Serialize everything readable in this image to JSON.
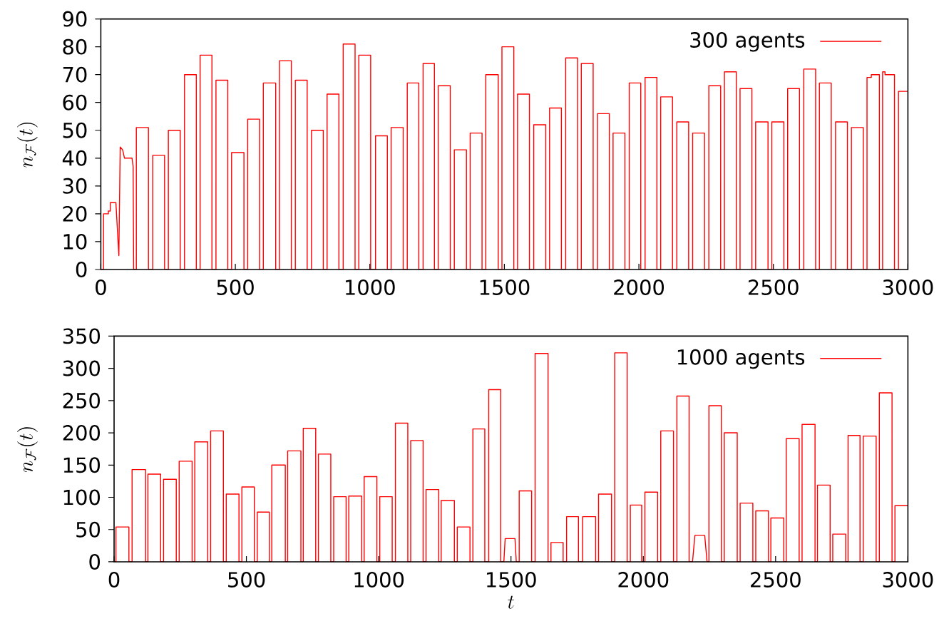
{
  "chart_data": [
    {
      "type": "line",
      "ylabel": "n_{\\mathcal{F}}(t)",
      "xlim": [
        0,
        3000
      ],
      "ylim": [
        0,
        90
      ],
      "xticks": [
        0,
        500,
        1000,
        1500,
        2000,
        2500,
        3000
      ],
      "yticks": [
        0,
        10,
        20,
        30,
        40,
        50,
        60,
        70,
        80,
        90
      ],
      "legend": "top right",
      "x": [
        0,
        10,
        10,
        28,
        28,
        35,
        35,
        56,
        67,
        72,
        81,
        88,
        116,
        120,
        122,
        132,
        132,
        177,
        177,
        193,
        193,
        237,
        237,
        251,
        251,
        295,
        295,
        311,
        311,
        355,
        355,
        369,
        369,
        413,
        413,
        428,
        428,
        472,
        472,
        486,
        486,
        532,
        532,
        546,
        546,
        590,
        590,
        604,
        604,
        650,
        650,
        664,
        664,
        708,
        708,
        723,
        723,
        767,
        767,
        783,
        783,
        827,
        827,
        841,
        841,
        885,
        885,
        901,
        901,
        945,
        945,
        959,
        959,
        1003,
        1003,
        1021,
        1021,
        1065,
        1065,
        1079,
        1079,
        1124,
        1124,
        1139,
        1139,
        1182,
        1182,
        1198,
        1198,
        1240,
        1240,
        1254,
        1254,
        1299,
        1299,
        1314,
        1314,
        1359,
        1359,
        1373,
        1373,
        1417,
        1417,
        1431,
        1431,
        1477,
        1477,
        1491,
        1491,
        1535,
        1535,
        1549,
        1549,
        1593,
        1593,
        1609,
        1609,
        1654,
        1654,
        1668,
        1668,
        1712,
        1712,
        1728,
        1728,
        1772,
        1772,
        1786,
        1786,
        1830,
        1830,
        1846,
        1846,
        1890,
        1890,
        1904,
        1904,
        1948,
        1948,
        1964,
        1964,
        2007,
        2007,
        2023,
        2023,
        2067,
        2067,
        2081,
        2081,
        2125,
        2125,
        2141,
        2141,
        2185,
        2185,
        2200,
        2200,
        2244,
        2244,
        2260,
        2260,
        2304,
        2304,
        2318,
        2318,
        2362,
        2362,
        2376,
        2376,
        2420,
        2420,
        2434,
        2434,
        2480,
        2480,
        2494,
        2494,
        2539,
        2539,
        2553,
        2553,
        2597,
        2597,
        2613,
        2613,
        2657,
        2657,
        2671,
        2671,
        2715,
        2715,
        2731,
        2731,
        2775,
        2775,
        2790,
        2790,
        2834,
        2834,
        2848,
        2848,
        2864,
        2864,
        2894,
        2894,
        2906,
        2906,
        2915,
        2915,
        2950,
        2950,
        2965,
        2965,
        3000
      ],
      "series": [
        {
          "name": "300 agents",
          "color": "#ff0000",
          "values": [
            0,
            0,
            20,
            20,
            21,
            21,
            24,
            24,
            5,
            44,
            43,
            40,
            40,
            37,
            0,
            0,
            51,
            51,
            0,
            0,
            41,
            41,
            0,
            0,
            50,
            50,
            0,
            0,
            70,
            70,
            0,
            0,
            77,
            77,
            0,
            0,
            68,
            68,
            0,
            0,
            42,
            42,
            0,
            0,
            54,
            54,
            0,
            0,
            67,
            67,
            0,
            0,
            75,
            75,
            0,
            0,
            68,
            68,
            0,
            0,
            50,
            50,
            0,
            0,
            63,
            63,
            0,
            0,
            81,
            81,
            0,
            0,
            77,
            77,
            0,
            0,
            48,
            48,
            0,
            0,
            51,
            51,
            0,
            0,
            67,
            67,
            0,
            0,
            74,
            74,
            0,
            0,
            66,
            66,
            0,
            0,
            43,
            43,
            0,
            0,
            49,
            49,
            0,
            0,
            70,
            70,
            0,
            0,
            80,
            80,
            0,
            0,
            63,
            63,
            0,
            0,
            52,
            52,
            0,
            0,
            58,
            58,
            0,
            0,
            76,
            76,
            0,
            0,
            74,
            74,
            0,
            0,
            56,
            56,
            0,
            0,
            49,
            49,
            0,
            0,
            67,
            67,
            0,
            0,
            69,
            69,
            0,
            0,
            62,
            62,
            0,
            0,
            53,
            53,
            0,
            0,
            49,
            49,
            0,
            0,
            66,
            66,
            0,
            0,
            71,
            71,
            0,
            0,
            65,
            65,
            0,
            0,
            53,
            53,
            0,
            0,
            53,
            53,
            0,
            0,
            65,
            65,
            0,
            0,
            72,
            72,
            0,
            0,
            67,
            67,
            0,
            0,
            53,
            53,
            0,
            0,
            51,
            51,
            0,
            0,
            69,
            69,
            70,
            70,
            0,
            0,
            71,
            71,
            70,
            70,
            0,
            0,
            64,
            64
          ]
        }
      ]
    },
    {
      "type": "line",
      "xlabel": "t",
      "ylabel": "n_{\\mathcal{F}}(t)",
      "xlim": [
        0,
        3000
      ],
      "ylim": [
        0,
        350
      ],
      "xticks": [
        0,
        500,
        1000,
        1500,
        2000,
        2500,
        3000
      ],
      "yticks": [
        0,
        50,
        100,
        150,
        200,
        250,
        300,
        350
      ],
      "legend": "top right",
      "x": [
        0,
        7,
        7,
        56,
        56,
        68,
        68,
        119,
        119,
        128,
        128,
        176,
        176,
        187,
        187,
        235,
        235,
        246,
        246,
        295,
        295,
        305,
        305,
        354,
        354,
        365,
        365,
        413,
        413,
        424,
        424,
        472,
        472,
        483,
        483,
        530,
        530,
        541,
        541,
        587,
        587,
        596,
        596,
        647,
        647,
        656,
        656,
        706,
        706,
        715,
        715,
        762,
        762,
        772,
        772,
        819,
        819,
        830,
        830,
        877,
        877,
        887,
        887,
        936,
        936,
        945,
        945,
        993,
        993,
        1004,
        1004,
        1051,
        1051,
        1063,
        1063,
        1110,
        1110,
        1121,
        1121,
        1168,
        1168,
        1179,
        1179,
        1227,
        1227,
        1236,
        1236,
        1286,
        1286,
        1297,
        1297,
        1345,
        1345,
        1356,
        1356,
        1401,
        1401,
        1416,
        1416,
        1461,
        1461,
        1473,
        1478,
        1515,
        1520,
        1531,
        1531,
        1578,
        1578,
        1591,
        1591,
        1640,
        1640,
        1651,
        1651,
        1697,
        1697,
        1710,
        1710,
        1755,
        1755,
        1771,
        1771,
        1820,
        1820,
        1831,
        1831,
        1880,
        1880,
        1892,
        1892,
        1939,
        1939,
        1951,
        1951,
        1994,
        1994,
        2006,
        2006,
        2054,
        2054,
        2066,
        2066,
        2114,
        2114,
        2127,
        2127,
        2173,
        2173,
        2186,
        2195,
        2232,
        2241,
        2248,
        2248,
        2295,
        2295,
        2306,
        2306,
        2355,
        2355,
        2366,
        2366,
        2414,
        2414,
        2425,
        2425,
        2473,
        2473,
        2482,
        2482,
        2531,
        2531,
        2540,
        2540,
        2589,
        2589,
        2600,
        2600,
        2649,
        2649,
        2658,
        2658,
        2706,
        2706,
        2716,
        2716,
        2765,
        2765,
        2774,
        2774,
        2819,
        2819,
        2831,
        2831,
        2880,
        2880,
        2892,
        2892,
        2940,
        2940,
        2951,
        2951,
        3000
      ],
      "series": [
        {
          "name": "1000 agents",
          "color": "#ff0000",
          "values": [
            0,
            0,
            54,
            54,
            0,
            0,
            143,
            143,
            0,
            0,
            136,
            136,
            0,
            0,
            128,
            128,
            0,
            0,
            156,
            156,
            0,
            0,
            186,
            186,
            0,
            0,
            203,
            203,
            0,
            0,
            105,
            105,
            0,
            0,
            116,
            116,
            0,
            0,
            77,
            77,
            0,
            0,
            150,
            150,
            0,
            0,
            172,
            172,
            0,
            0,
            207,
            207,
            0,
            0,
            167,
            167,
            0,
            0,
            101,
            101,
            0,
            0,
            102,
            102,
            0,
            0,
            132,
            132,
            0,
            0,
            101,
            101,
            0,
            0,
            215,
            215,
            0,
            0,
            188,
            188,
            0,
            0,
            112,
            112,
            0,
            0,
            95,
            95,
            0,
            0,
            54,
            54,
            0,
            0,
            206,
            206,
            0,
            0,
            267,
            267,
            0,
            0,
            36,
            36,
            0,
            0,
            110,
            110,
            0,
            0,
            323,
            323,
            0,
            0,
            30,
            30,
            0,
            0,
            70,
            70,
            0,
            0,
            70,
            70,
            0,
            0,
            105,
            105,
            0,
            0,
            324,
            324,
            0,
            0,
            88,
            88,
            0,
            0,
            108,
            108,
            0,
            0,
            203,
            203,
            0,
            0,
            257,
            257,
            0,
            0,
            41,
            41,
            0,
            0,
            242,
            242,
            0,
            0,
            200,
            200,
            0,
            0,
            91,
            91,
            0,
            0,
            79,
            79,
            0,
            0,
            68,
            68,
            0,
            0,
            191,
            191,
            0,
            0,
            213,
            213,
            0,
            0,
            119,
            119,
            0,
            0,
            43,
            43,
            0,
            0,
            196,
            196,
            0,
            0,
            195,
            195,
            0,
            0,
            262,
            262,
            0,
            0,
            87,
            87
          ]
        }
      ]
    }
  ]
}
